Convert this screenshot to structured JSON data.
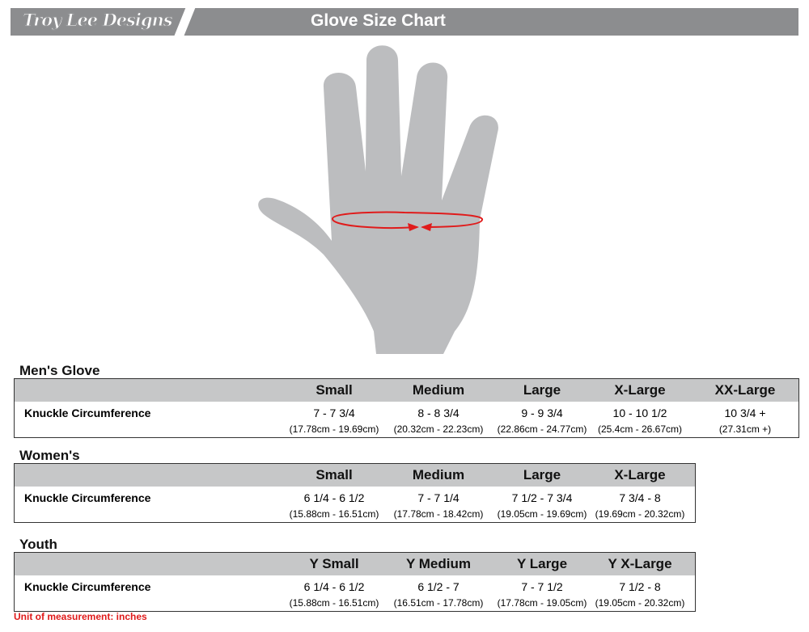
{
  "header": {
    "logo": "Troy Lee Designs",
    "title": "Glove Size Chart"
  },
  "colors": {
    "header": "#8c8d8f",
    "hand": "#bcbdbf",
    "arrow": "#e01b1b",
    "unit": "#e01b1b"
  },
  "tables": [
    {
      "title": "Men's Glove",
      "row_label": "Knuckle Circumference",
      "sizes": [
        "Small",
        "Medium",
        "Large",
        "X-Large",
        "XX-Large"
      ],
      "inches": [
        "7 - 7 3/4",
        "8 - 8 3/4",
        "9 - 9 3/4",
        "10 - 10 1/2",
        "10 3/4 +"
      ],
      "cm": [
        "(17.78cm - 19.69cm)",
        "(20.32cm - 22.23cm)",
        "(22.86cm - 24.77cm)",
        "(25.4cm - 26.67cm)",
        "(27.31cm +)"
      ]
    },
    {
      "title": "Women's",
      "row_label": "Knuckle Circumference",
      "sizes": [
        "Small",
        "Medium",
        "Large",
        "X-Large"
      ],
      "inches": [
        "6 1/4 - 6 1/2",
        "7 - 7 1/4",
        "7 1/2 - 7 3/4",
        "7 3/4 - 8"
      ],
      "cm": [
        "(15.88cm - 16.51cm)",
        "(17.78cm - 18.42cm)",
        "(19.05cm - 19.69cm)",
        "(19.69cm - 20.32cm)"
      ]
    },
    {
      "title": "Youth",
      "row_label": "Knuckle Circumference",
      "sizes": [
        "Y Small",
        "Y Medium",
        "Y Large",
        "Y X-Large"
      ],
      "inches": [
        "6 1/4 - 6 1/2",
        "6 1/2 - 7",
        "7 - 7 1/2",
        "7 1/2 - 8"
      ],
      "cm": [
        "(15.88cm - 16.51cm)",
        "(16.51cm - 17.78cm)",
        "(17.78cm - 19.05cm)",
        "(19.05cm - 20.32cm)"
      ]
    }
  ],
  "unit_note": "Unit of measurement:  inches"
}
